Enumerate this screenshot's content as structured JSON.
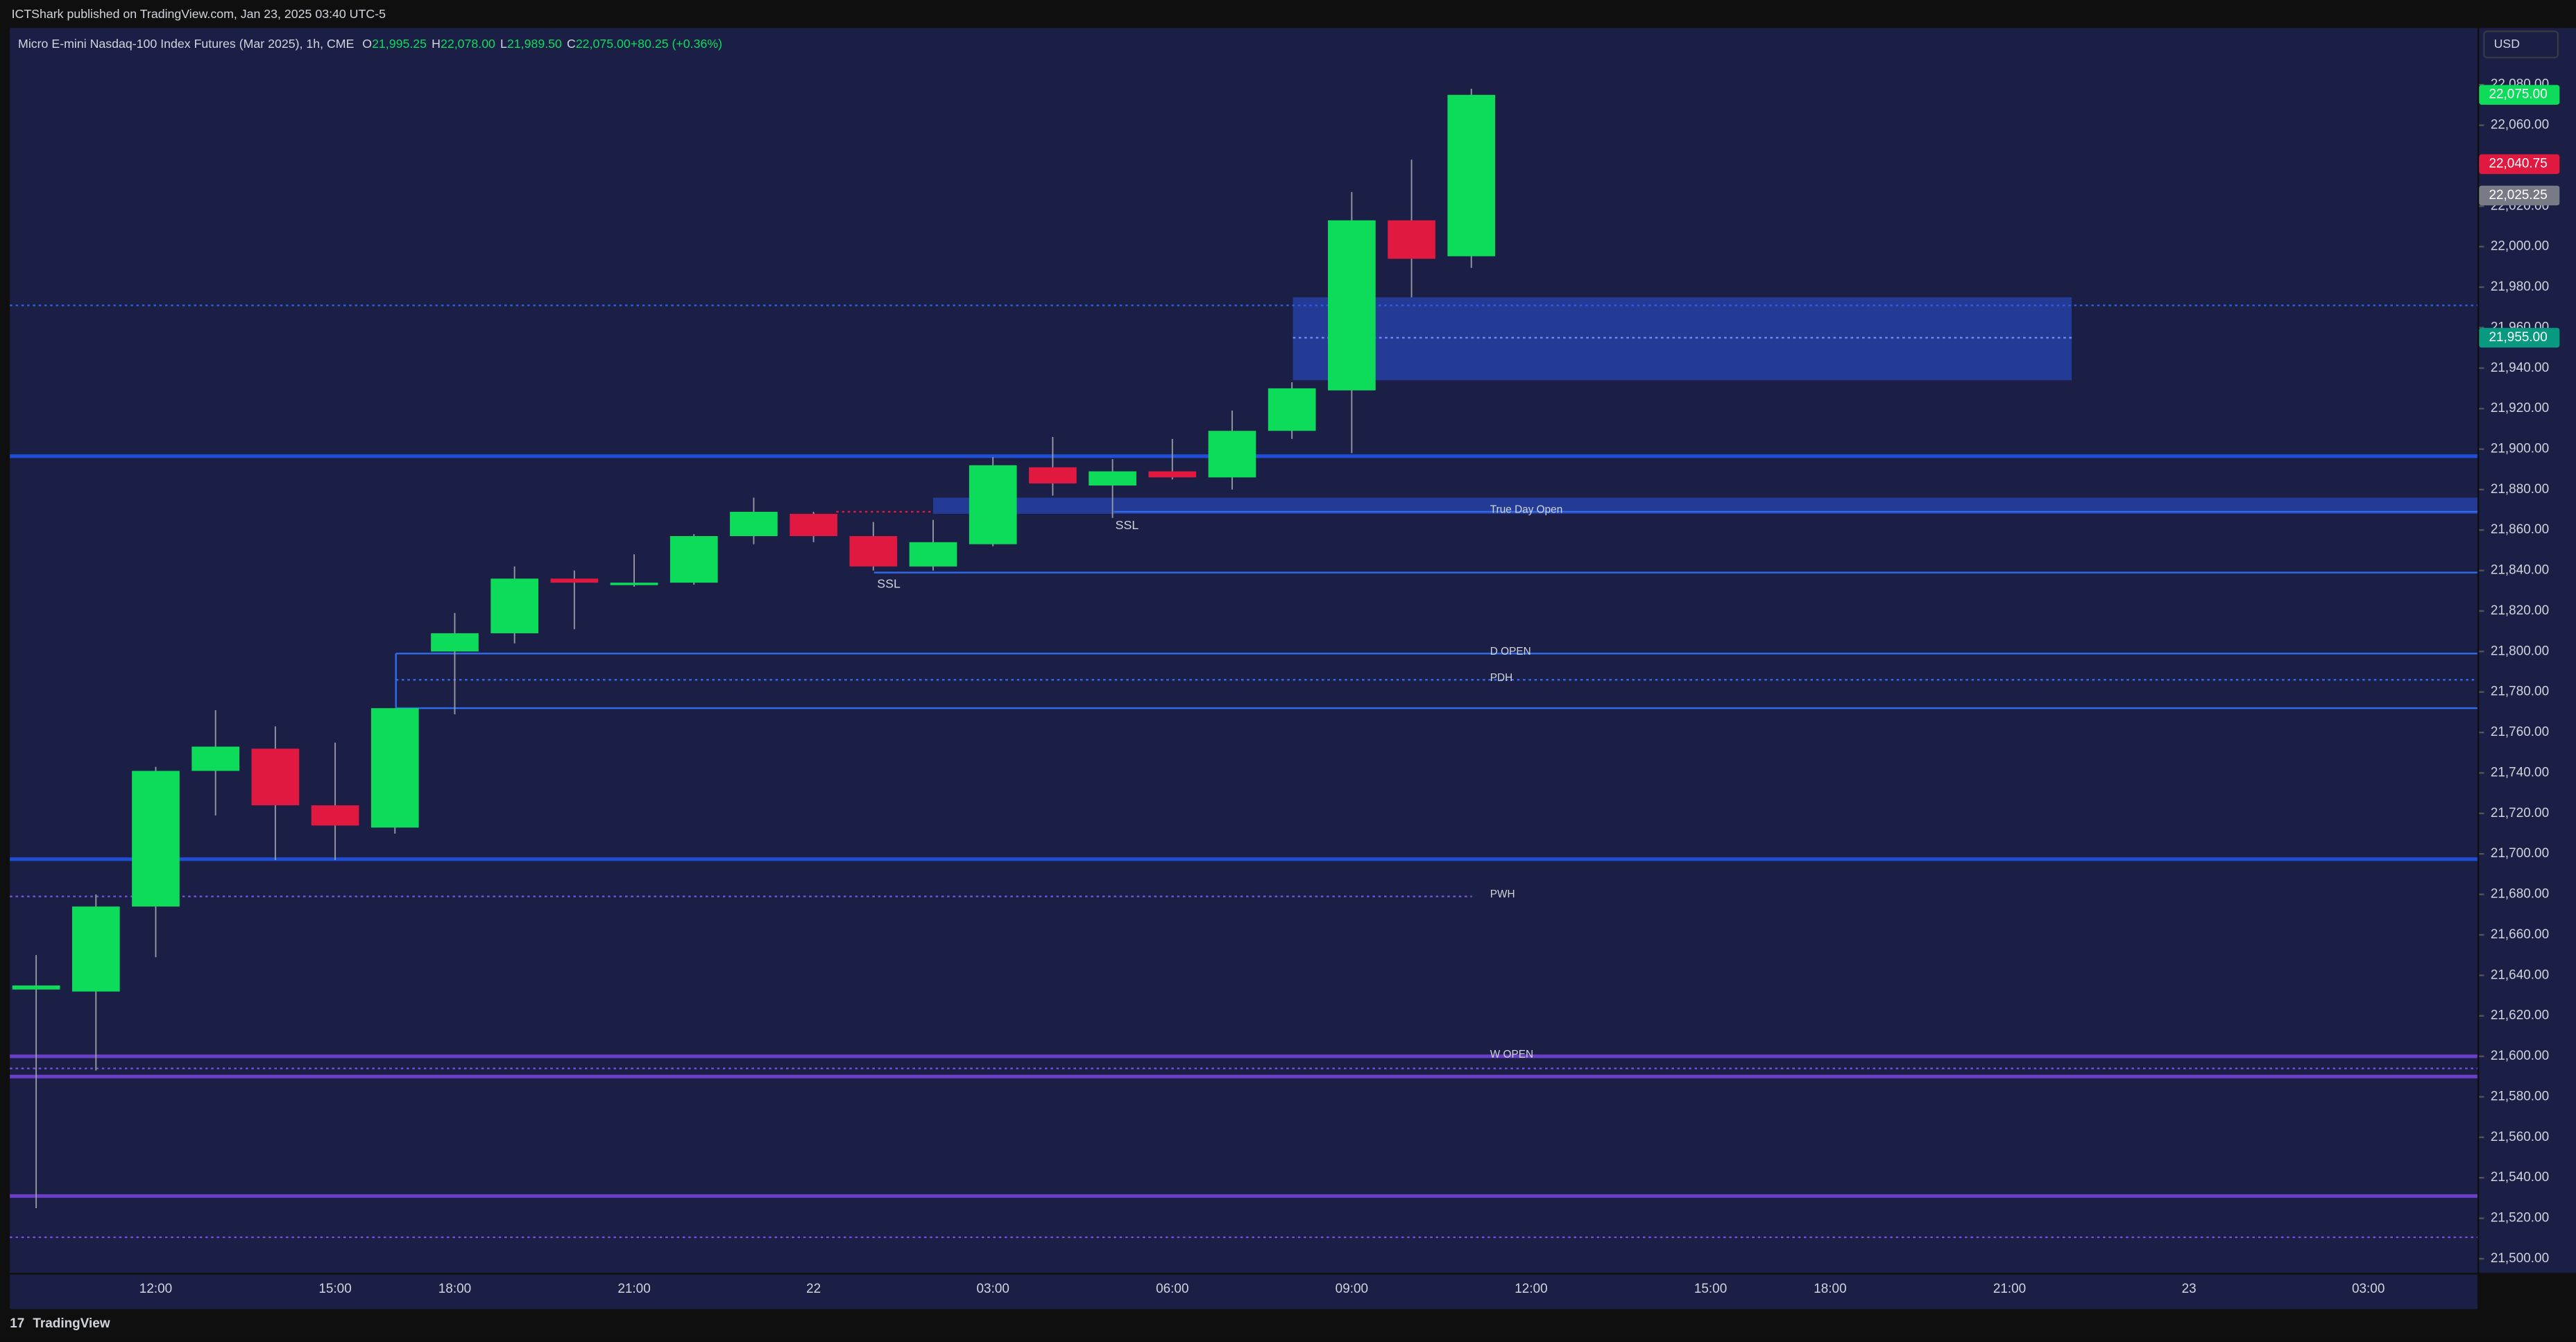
{
  "header": {
    "publisher": "ICTShark published on TradingView.com, Jan 23, 2025 03:40 UTC-5",
    "brand": "TradingView"
  },
  "chart_data": {
    "type": "candlestick",
    "title": "Micro E-mini Nasdaq-100 Index Futures (Mar 2025), 1h, CME",
    "ohlc_legend": [
      {
        "key": "O",
        "value": "21,995.25"
      },
      {
        "key": "H",
        "value": "22,078.00"
      },
      {
        "key": "L",
        "value": "21,989.50"
      },
      {
        "key": "C",
        "value": "22,075.00"
      },
      {
        "key": "",
        "value": "+80.25 (+0.36%)"
      }
    ],
    "currency": "USD",
    "categories": [
      null,
      null,
      "12:00",
      null,
      null,
      "15:00",
      null,
      "18:00",
      null,
      null,
      "21:00",
      null,
      null,
      "22",
      null,
      null,
      "03:00",
      null,
      null,
      "06:00",
      null,
      null,
      "09:00",
      null,
      null,
      "12:00",
      null,
      null,
      "15:00",
      null,
      "18:00",
      null,
      null,
      "21:00",
      null,
      null,
      "23",
      null,
      null,
      "03:00",
      null,
      null
    ],
    "open": [
      21633,
      21632,
      21674,
      21741,
      21752,
      21724,
      21713,
      21800,
      21809,
      21836,
      21833,
      21834,
      21857,
      21868,
      21857,
      21842,
      21853,
      21891,
      21882,
      21889,
      21886,
      21909,
      21929,
      22013,
      21995.25,
      null,
      null,
      null,
      null,
      null,
      null,
      null,
      null,
      null,
      null,
      null,
      null,
      null,
      null,
      null,
      null,
      null
    ],
    "high": [
      21650,
      21680,
      21743,
      21771,
      21763,
      21755,
      21772,
      21819,
      21842,
      21840,
      21848,
      21858,
      21876,
      21869,
      21864,
      21865,
      21896,
      21906,
      21895,
      21905,
      21919,
      21933,
      22027,
      22043,
      22078,
      null,
      null,
      null,
      null,
      null,
      null,
      null,
      null,
      null,
      null,
      null,
      null,
      null,
      null,
      null,
      null,
      null
    ],
    "low": [
      21525,
      21593,
      21649,
      21719,
      21697,
      21697,
      21710,
      21769,
      21804,
      21811,
      21832,
      21833,
      21853,
      21854,
      21840,
      21840,
      21852,
      21877,
      21866,
      21885,
      21880,
      21905,
      21898,
      21975,
      21989.5,
      null,
      null,
      null,
      null,
      null,
      null,
      null,
      null,
      null,
      null,
      null,
      null,
      null,
      null,
      null,
      null,
      null
    ],
    "close": [
      21635,
      21674,
      21741,
      21753,
      21724,
      21714,
      21772,
      21809,
      21836,
      21834,
      21834,
      21857,
      21869,
      21857,
      21842,
      21854,
      21892,
      21883,
      21889,
      21886,
      21909,
      21930,
      22013,
      21994,
      22075,
      null,
      null,
      null,
      null,
      null,
      null,
      null,
      null,
      null,
      null,
      null,
      null,
      null,
      null,
      null,
      null,
      null
    ],
    "up_color": "#0ddc5a",
    "down_color": "#e1183f",
    "ylim": [
      21493,
      22108
    ],
    "yticks": [
      {
        "value": 21500,
        "label": "21,500.00"
      },
      {
        "value": 21520,
        "label": "21,520.00"
      },
      {
        "value": 21540,
        "label": "21,540.00"
      },
      {
        "value": 21560,
        "label": "21,560.00"
      },
      {
        "value": 21580,
        "label": "21,580.00"
      },
      {
        "value": 21600,
        "label": "21,600.00"
      },
      {
        "value": 21620,
        "label": "21,620.00"
      },
      {
        "value": 21640,
        "label": "21,640.00"
      },
      {
        "value": 21660,
        "label": "21,660.00"
      },
      {
        "value": 21680,
        "label": "21,680.00"
      },
      {
        "value": 21700,
        "label": "21,700.00"
      },
      {
        "value": 21720,
        "label": "21,720.00"
      },
      {
        "value": 21740,
        "label": "21,740.00"
      },
      {
        "value": 21760,
        "label": "21,760.00"
      },
      {
        "value": 21780,
        "label": "21,780.00"
      },
      {
        "value": 21800,
        "label": "21,800.00"
      },
      {
        "value": 21820,
        "label": "21,820.00"
      },
      {
        "value": 21840,
        "label": "21,840.00"
      },
      {
        "value": 21860,
        "label": "21,860.00"
      },
      {
        "value": 21880,
        "label": "21,880.00"
      },
      {
        "value": 21900,
        "label": "21,900.00"
      },
      {
        "value": 21920,
        "label": "21,920.00"
      },
      {
        "value": 21940,
        "label": "21,940.00"
      },
      {
        "value": 21960,
        "label": "21,960.00"
      },
      {
        "value": 21980,
        "label": "21,980.00"
      },
      {
        "value": 22000,
        "label": "22,000.00"
      },
      {
        "value": 22020,
        "label": "22,020.00"
      },
      {
        "value": 22040,
        "label": "22,040.00"
      },
      {
        "value": 22060,
        "label": "22,060.00"
      },
      {
        "value": 22080,
        "label": "22,080.00"
      }
    ],
    "price_labels": [
      {
        "value": 22075,
        "label": "22,075.00",
        "color": "#0ddc5a"
      },
      {
        "value": 22040.75,
        "label": "22,040.75",
        "color": "#e1183f"
      },
      {
        "value": 22025.25,
        "label": "22,025.25",
        "color": "#787b86"
      },
      {
        "value": 21955,
        "label": "21,955.00",
        "color": "#089981"
      }
    ],
    "levels": [
      {
        "value": 21971,
        "color": "#2f5ce0",
        "style": "dotted",
        "weight": "thin"
      },
      {
        "value": 21896.5,
        "color": "#1f4ed6",
        "style": "solid",
        "weight": "thick"
      },
      {
        "value": 21869,
        "color": "#2f6cf0",
        "style": "solid",
        "weight": "thin",
        "label": "True Day Open"
      },
      {
        "value": 21839,
        "color": "#2f6cf0",
        "style": "solid",
        "weight": "thin"
      },
      {
        "value": 21799,
        "color": "#2f6cf0",
        "style": "solid",
        "weight": "thin",
        "label": "D OPEN"
      },
      {
        "value": 21786,
        "color": "#2f6cf0",
        "style": "dotted",
        "weight": "thin",
        "label": "PDH"
      },
      {
        "value": 21772,
        "color": "#2f6cf0",
        "style": "solid",
        "weight": "thin"
      },
      {
        "value": 21697.4,
        "color": "#1f4ed6",
        "style": "solid",
        "weight": "thick"
      },
      {
        "value": 21679,
        "color": "#7a4fd8",
        "style": "dotted",
        "weight": "thin",
        "label": "PWH"
      },
      {
        "value": 21600,
        "color": "#6a3fc6",
        "style": "solid",
        "weight": "thick",
        "label": "W OPEN"
      },
      {
        "value": 21594,
        "color": "#7a4fd8",
        "style": "dotted",
        "weight": "thin"
      },
      {
        "value": 21590,
        "color": "#6a3fc6",
        "style": "solid",
        "weight": "thick"
      },
      {
        "value": 21531,
        "color": "#6a3fc6",
        "style": "solid",
        "weight": "thick"
      },
      {
        "value": 21510.6,
        "color": "#7a4fd8",
        "style": "dotted",
        "weight": "thin"
      },
      {
        "value": 21869,
        "color": "#e1183f",
        "style": "dotted",
        "weight": "thin"
      },
      {
        "value": 21955,
        "color": "#6c8df5",
        "style": "dotted",
        "weight": "thin"
      }
    ],
    "zones": [
      {
        "from": 21934,
        "to": 21975,
        "color": "#2845b0"
      },
      {
        "from": 21868,
        "to": 21876,
        "color": "#2845b0"
      }
    ],
    "annotations": [
      {
        "text": "SSL",
        "value": 21833
      },
      {
        "text": "SSL",
        "value": 21862
      }
    ]
  }
}
